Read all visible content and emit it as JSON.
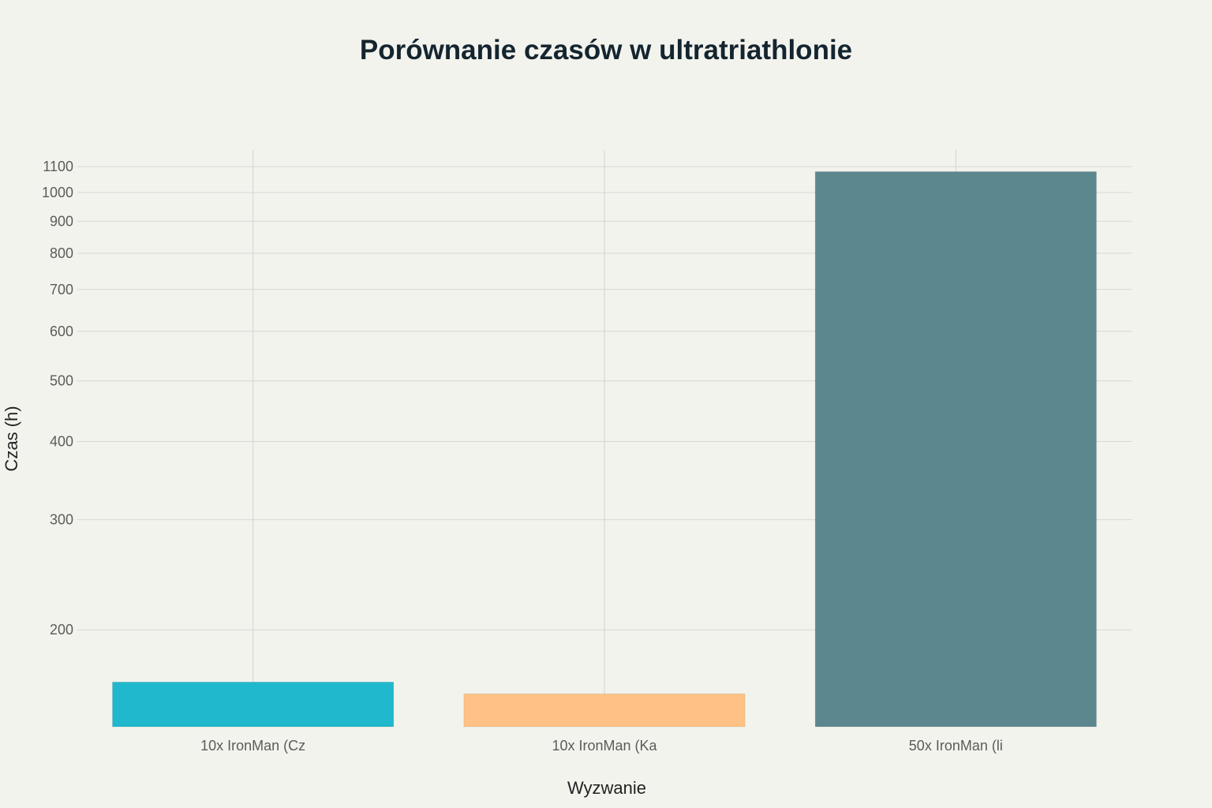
{
  "chart_data": {
    "type": "bar",
    "title": "Porównanie czasów w ultratriathlonie",
    "xlabel": "Wyzwanie",
    "ylabel": "Czas (h)",
    "y_scale": "log",
    "ylim": [
      140,
      1170
    ],
    "yticks": [
      200,
      300,
      400,
      500,
      600,
      700,
      800,
      900,
      1000,
      1100
    ],
    "categories": [
      "10x IronMan (Cz",
      "10x IronMan (Ka",
      "50x IronMan (li"
    ],
    "values": [
      165,
      158,
      1080
    ],
    "colors": [
      "#1fb8cd",
      "#ffc185",
      "#5d878f"
    ],
    "grid": true,
    "legend": "none"
  }
}
